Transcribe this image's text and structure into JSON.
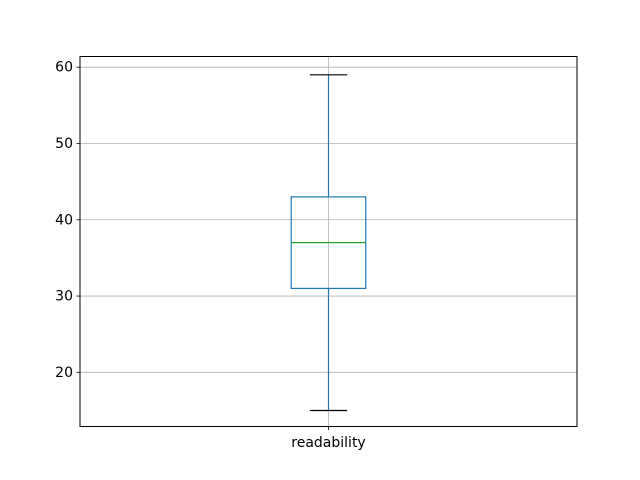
{
  "figure": {
    "background": "#ffffff"
  },
  "chart_data": {
    "type": "box",
    "title": "",
    "xlabel": "",
    "ylabel": "",
    "categories": [
      "readability"
    ],
    "series": [
      {
        "name": "readability",
        "whislo": 15,
        "q1": 31,
        "med": 37,
        "q3": 43,
        "whishi": 59,
        "fliers": []
      }
    ],
    "ylim": [
      12.9,
      61.4
    ],
    "yticks": [
      20,
      30,
      40,
      50,
      60
    ],
    "xlim": [
      0.5,
      1.5
    ],
    "box_width": 0.15,
    "grid": true,
    "legend": false,
    "colors": {
      "box": "#1f77b4",
      "whisker": "#1f77b4",
      "median": "#2ca02c",
      "cap": "#000000",
      "grid": "#b0b0b0",
      "spine": "#000000",
      "tick": "#000000",
      "text": "#000000",
      "background": "#ffffff"
    }
  }
}
